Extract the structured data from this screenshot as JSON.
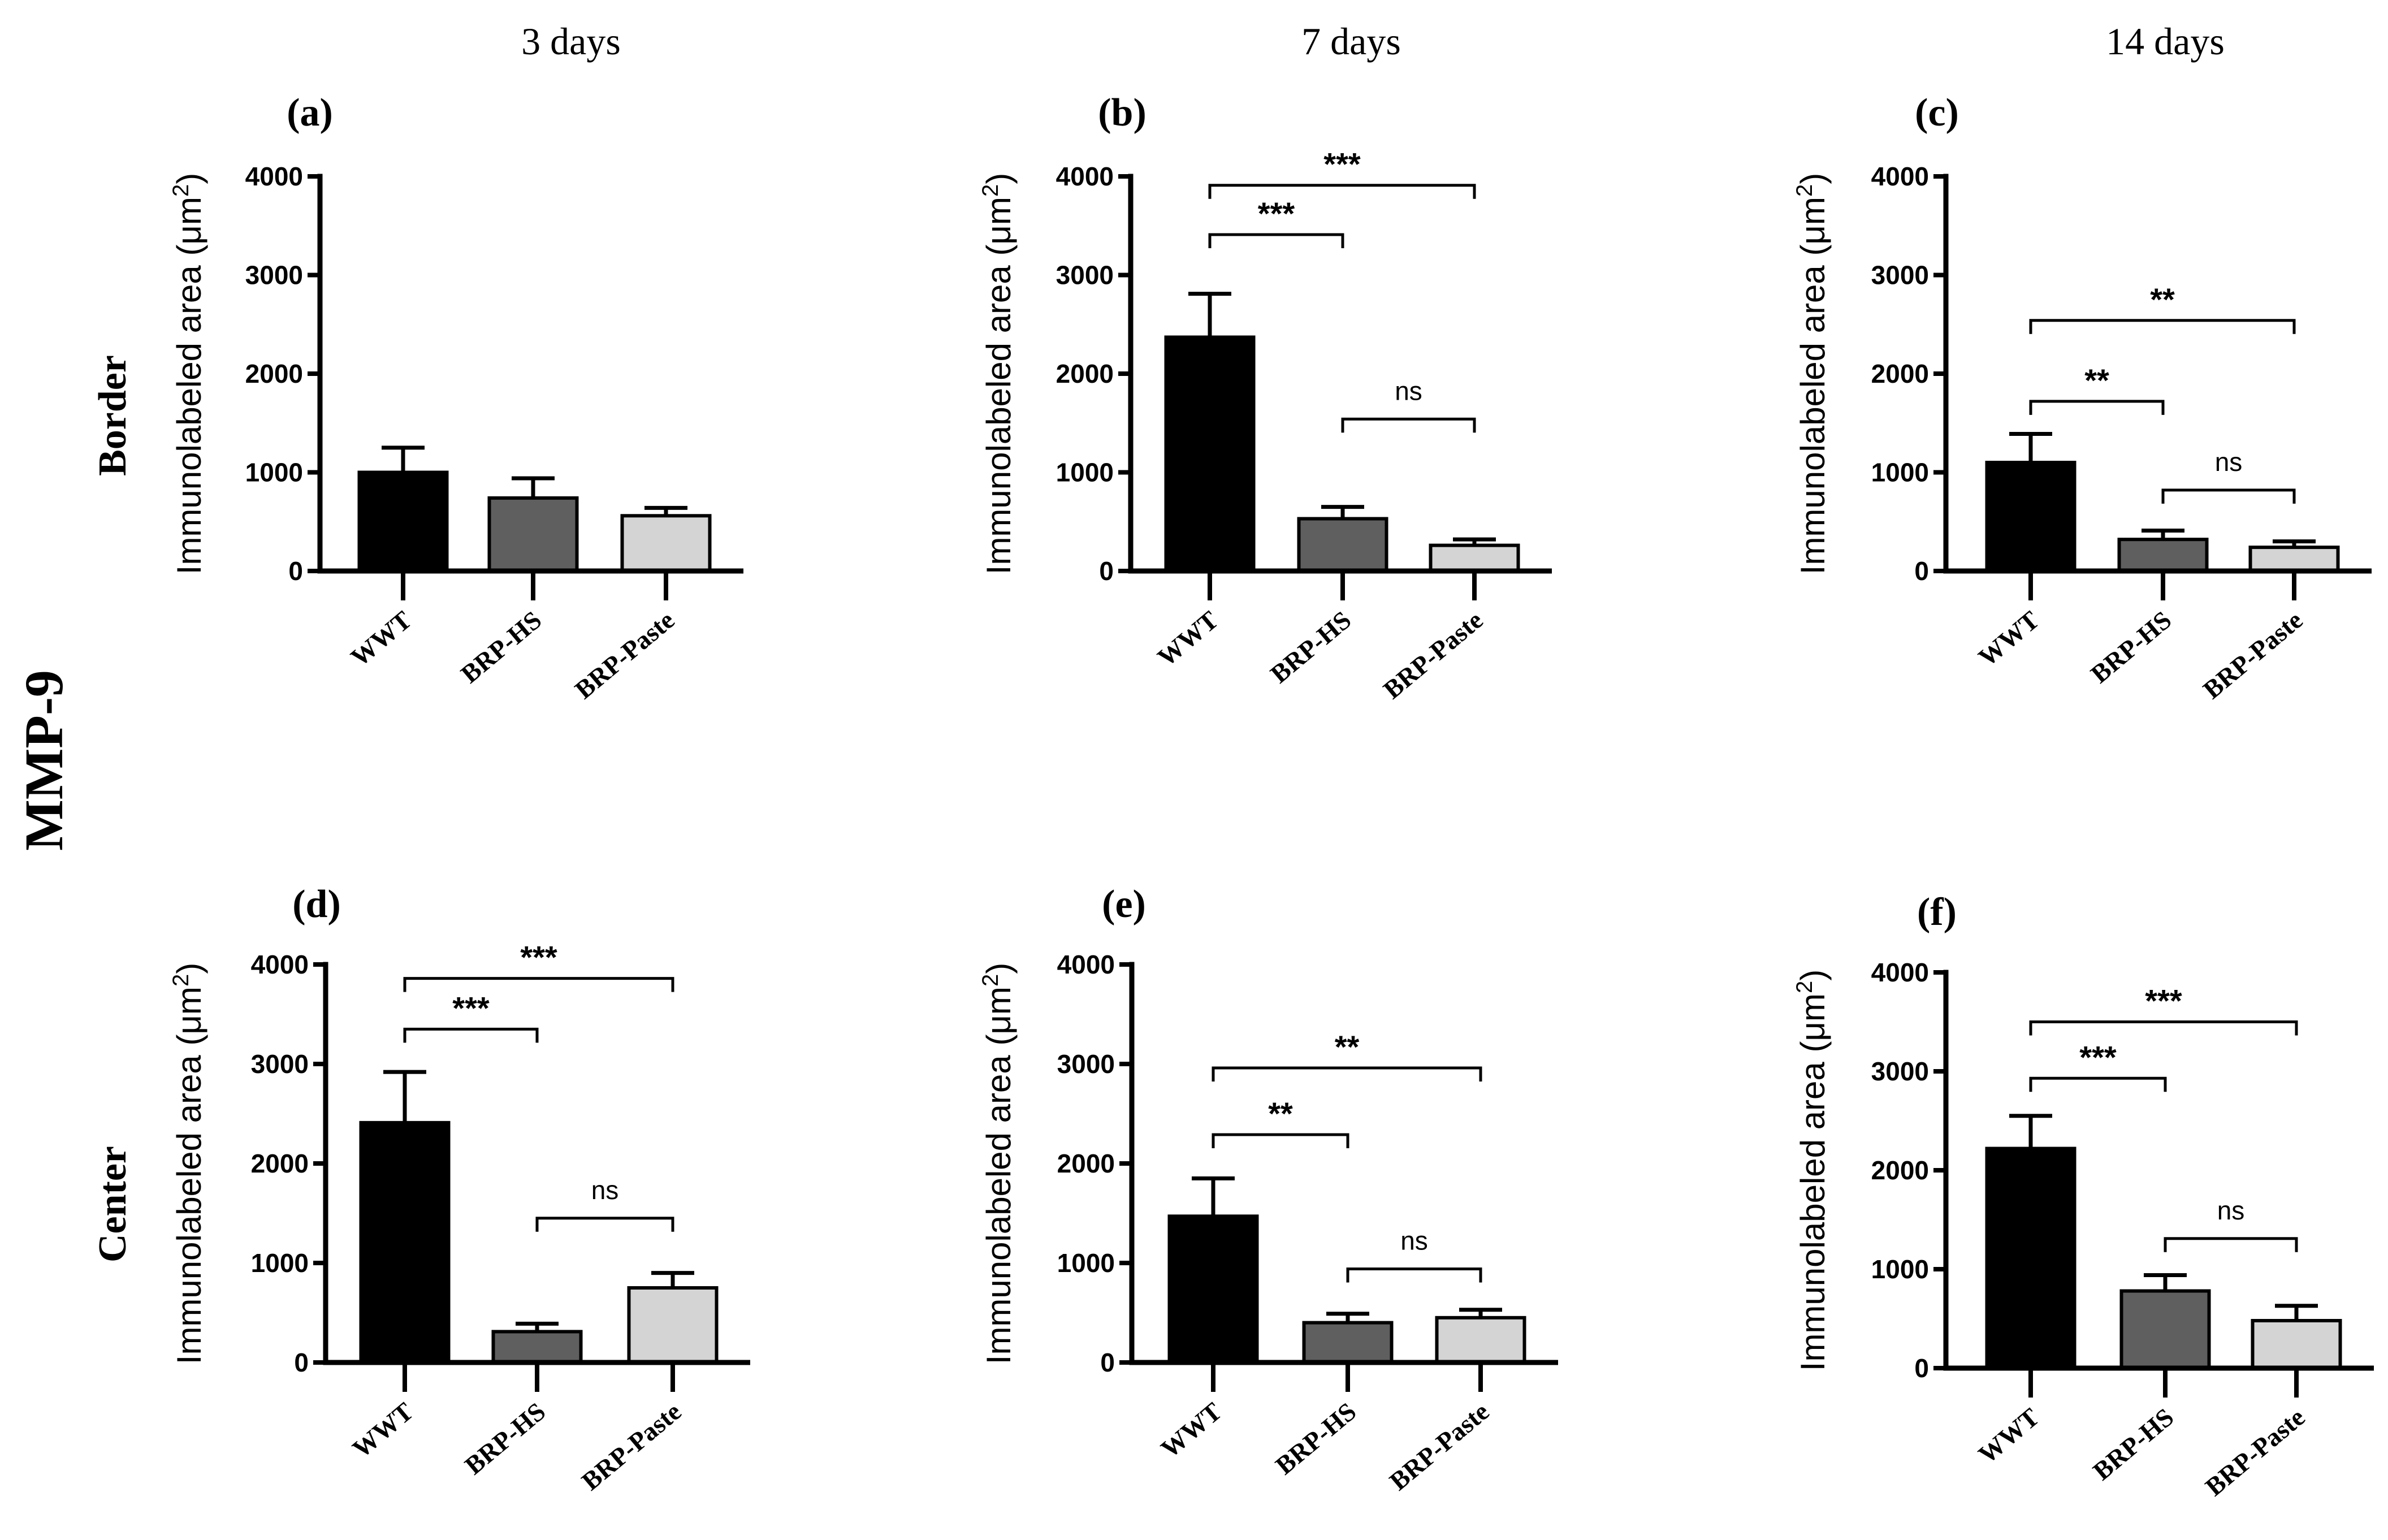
{
  "figure": {
    "side_label": "MMP-9",
    "columns": [
      "3 days",
      "7 days",
      "14 days"
    ],
    "rows": [
      "Border",
      "Center"
    ]
  },
  "chart_data": [
    {
      "panel": "(a)",
      "type": "bar",
      "row": "Border",
      "column": "3 days",
      "categories": [
        "WWT",
        "BRP-HS",
        "BRP-Paste"
      ],
      "values": [
        1000,
        740,
        560
      ],
      "errors": [
        250,
        200,
        80
      ],
      "ylabel": "Immunolabeled area (μm",
      "ylabel_sup": "2",
      "ylabel_end": ")",
      "ylim": [
        0,
        4000
      ],
      "yticks": [
        0,
        1000,
        2000,
        3000,
        4000
      ],
      "colors": [
        "#000000",
        "#5f5f5f",
        "#d4d4d4"
      ],
      "comparisons": []
    },
    {
      "panel": "(b)",
      "type": "bar",
      "row": "Border",
      "column": "7 days",
      "categories": [
        "WWT",
        "BRP-HS",
        "BRP-Paste"
      ],
      "values": [
        2370,
        530,
        260
      ],
      "errors": [
        440,
        120,
        60
      ],
      "ylabel": "Immunolabeled area (μm",
      "ylabel_sup": "2",
      "ylabel_end": ")",
      "ylim": [
        0,
        4000
      ],
      "yticks": [
        0,
        1000,
        2000,
        3000,
        4000
      ],
      "colors": [
        "#000000",
        "#5f5f5f",
        "#d4d4d4"
      ],
      "comparisons": [
        {
          "from": 0,
          "to": 1,
          "label": "***",
          "level": 3410
        },
        {
          "from": 0,
          "to": 2,
          "label": "***",
          "level": 3910
        },
        {
          "from": 1,
          "to": 2,
          "label": "ns",
          "level": 1540
        }
      ]
    },
    {
      "panel": "(c)",
      "type": "bar",
      "row": "Border",
      "column": "14 days",
      "categories": [
        "WWT",
        "BRP-HS",
        "BRP-Paste"
      ],
      "values": [
        1100,
        320,
        240
      ],
      "errors": [
        290,
        90,
        60
      ],
      "ylabel": "Immunolabeled area (μm",
      "ylabel_sup": "2",
      "ylabel_end": ")",
      "ylim": [
        0,
        4000
      ],
      "yticks": [
        0,
        1000,
        2000,
        3000,
        4000
      ],
      "colors": [
        "#000000",
        "#5f5f5f",
        "#d4d4d4"
      ],
      "comparisons": [
        {
          "from": 0,
          "to": 1,
          "label": "**",
          "level": 1720
        },
        {
          "from": 0,
          "to": 2,
          "label": "**",
          "level": 2540
        },
        {
          "from": 1,
          "to": 2,
          "label": "ns",
          "level": 820
        }
      ]
    },
    {
      "panel": "(d)",
      "type": "bar",
      "row": "Center",
      "column": "3 days",
      "categories": [
        "WWT",
        "BRP-HS",
        "BRP-Paste"
      ],
      "values": [
        2410,
        310,
        750
      ],
      "errors": [
        510,
        80,
        150
      ],
      "ylabel": "Immunolabeled area (μm",
      "ylabel_sup": "2",
      "ylabel_end": ")",
      "ylim": [
        0,
        4000
      ],
      "yticks": [
        0,
        1000,
        2000,
        3000,
        4000
      ],
      "colors": [
        "#000000",
        "#5f5f5f",
        "#d4d4d4"
      ],
      "comparisons": [
        {
          "from": 0,
          "to": 1,
          "label": "***",
          "level": 3350
        },
        {
          "from": 0,
          "to": 2,
          "label": "***",
          "level": 3860
        },
        {
          "from": 1,
          "to": 2,
          "label": "ns",
          "level": 1450
        }
      ]
    },
    {
      "panel": "(e)",
      "type": "bar",
      "row": "Center",
      "column": "7 days",
      "categories": [
        "WWT",
        "BRP-HS",
        "BRP-Paste"
      ],
      "values": [
        1470,
        400,
        450
      ],
      "errors": [
        380,
        90,
        80
      ],
      "ylabel": "Immunolabeled area (μm",
      "ylabel_sup": "2",
      "ylabel_end": ")",
      "ylim": [
        0,
        4000
      ],
      "yticks": [
        0,
        1000,
        2000,
        3000,
        4000
      ],
      "colors": [
        "#000000",
        "#5f5f5f",
        "#d4d4d4"
      ],
      "comparisons": [
        {
          "from": 0,
          "to": 1,
          "label": "**",
          "level": 2290
        },
        {
          "from": 0,
          "to": 2,
          "label": "**",
          "level": 2960
        },
        {
          "from": 1,
          "to": 2,
          "label": "ns",
          "level": 940
        }
      ]
    },
    {
      "panel": "(f)",
      "type": "bar",
      "row": "Center",
      "column": "14 days",
      "categories": [
        "WWT",
        "BRP-HS",
        "BRP-Paste"
      ],
      "values": [
        2220,
        780,
        480
      ],
      "errors": [
        330,
        160,
        150
      ],
      "ylabel": "Immunolabeled area (μm",
      "ylabel_sup": "2",
      "ylabel_end": ")",
      "ylim": [
        0,
        4000
      ],
      "yticks": [
        0,
        1000,
        2000,
        3000,
        4000
      ],
      "colors": [
        "#000000",
        "#5f5f5f",
        "#d4d4d4"
      ],
      "comparisons": [
        {
          "from": 0,
          "to": 1,
          "label": "***",
          "level": 2930
        },
        {
          "from": 0,
          "to": 2,
          "label": "***",
          "level": 3500
        },
        {
          "from": 1,
          "to": 2,
          "label": "ns",
          "level": 1310
        }
      ]
    }
  ]
}
